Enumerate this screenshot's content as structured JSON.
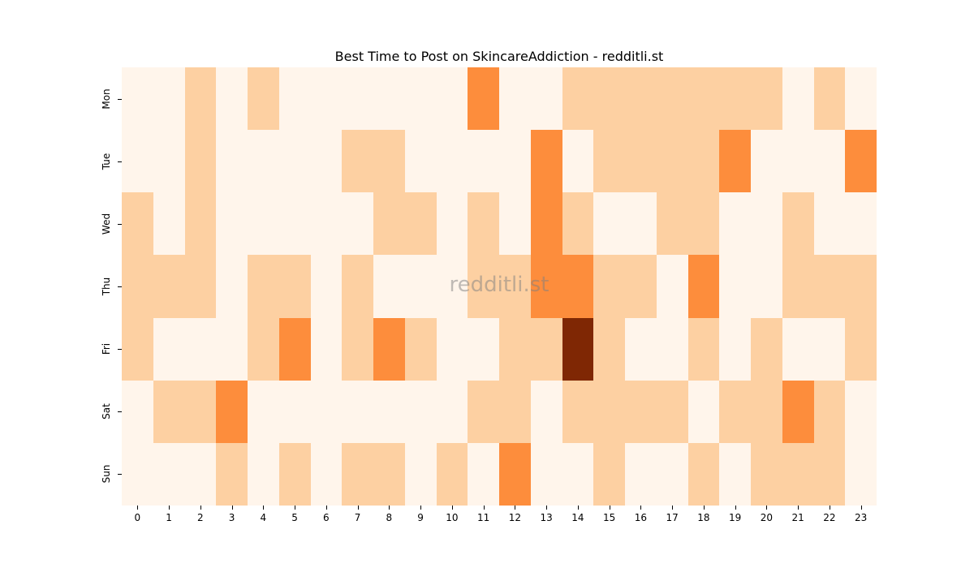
{
  "chart_data": {
    "type": "heatmap",
    "title": "Best Time to Post on SkincareAddiction - redditli.st",
    "xlabel": "",
    "ylabel": "",
    "x": [
      "0",
      "1",
      "2",
      "3",
      "4",
      "5",
      "6",
      "7",
      "8",
      "9",
      "10",
      "11",
      "12",
      "13",
      "14",
      "15",
      "16",
      "17",
      "18",
      "19",
      "20",
      "21",
      "22",
      "23"
    ],
    "y": [
      "Mon",
      "Tue",
      "Wed",
      "Thu",
      "Fri",
      "Sat",
      "Sun"
    ],
    "values": [
      [
        0,
        0,
        1,
        0,
        1,
        0,
        0,
        0,
        0,
        0,
        0,
        2,
        0,
        0,
        1,
        1,
        1,
        1,
        1,
        1,
        1,
        0,
        1,
        0
      ],
      [
        0,
        0,
        1,
        0,
        0,
        0,
        0,
        1,
        1,
        0,
        0,
        0,
        0,
        2,
        0,
        1,
        1,
        1,
        1,
        2,
        0,
        0,
        0,
        2
      ],
      [
        1,
        0,
        1,
        0,
        0,
        0,
        0,
        0,
        1,
        1,
        0,
        1,
        0,
        2,
        1,
        0,
        0,
        1,
        1,
        0,
        0,
        1,
        0,
        0
      ],
      [
        1,
        1,
        1,
        0,
        1,
        1,
        0,
        1,
        0,
        0,
        0,
        1,
        1,
        2,
        2,
        1,
        1,
        0,
        2,
        0,
        0,
        1,
        1,
        1
      ],
      [
        1,
        0,
        0,
        0,
        1,
        2,
        0,
        1,
        2,
        1,
        0,
        0,
        1,
        1,
        3,
        1,
        0,
        0,
        1,
        0,
        1,
        0,
        0,
        1
      ],
      [
        0,
        1,
        1,
        2,
        0,
        0,
        0,
        0,
        0,
        0,
        0,
        1,
        1,
        0,
        1,
        1,
        1,
        1,
        0,
        1,
        1,
        2,
        1,
        0
      ],
      [
        0,
        0,
        0,
        1,
        0,
        1,
        0,
        1,
        1,
        0,
        1,
        0,
        2,
        0,
        0,
        1,
        0,
        0,
        1,
        0,
        1,
        1,
        1,
        0
      ]
    ],
    "colormap": "Oranges",
    "level_colors": [
      "#fff5eb",
      "#fdd0a2",
      "#fd8d3c",
      "#7f2704"
    ],
    "colorbar": false,
    "grid": false,
    "watermark": "redditli.st"
  }
}
